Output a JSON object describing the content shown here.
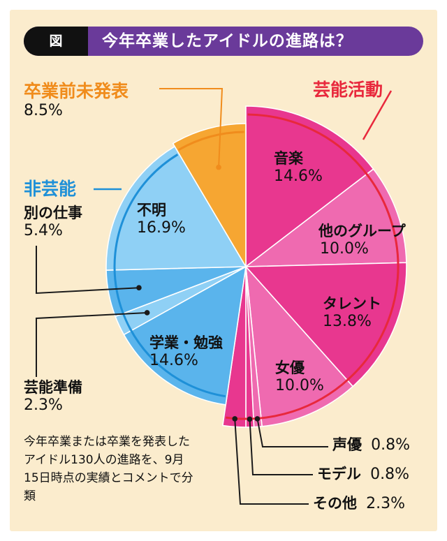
{
  "title": {
    "tag": "図",
    "text": "今年卒業したアイドルの進路は？"
  },
  "groups": [
    {
      "name": "芸能活動",
      "color": "#e8283c"
    },
    {
      "name": "非芸能",
      "color": "#1e90d8"
    },
    {
      "name": "卒業前未発表",
      "color": "#f08c1c"
    }
  ],
  "note": "今年卒業または卒業を発表したアイドル130人の進路を、9月15日時点の実績とコメントで分類",
  "chart_data": {
    "type": "pie",
    "title": "今年卒業したアイドルの進路は？",
    "unit": "%",
    "slices": [
      {
        "label": "音楽",
        "value": 14.6,
        "display": "14.6%",
        "group": "芸能活動",
        "color": "#e8378f"
      },
      {
        "label": "他のグループ",
        "value": 10.0,
        "display": "10.0%",
        "group": "芸能活動",
        "color": "#ef6ab0"
      },
      {
        "label": "タレント",
        "value": 13.8,
        "display": "13.8%",
        "group": "芸能活動",
        "color": "#e8378f"
      },
      {
        "label": "女優",
        "value": 10.0,
        "display": "10.0%",
        "group": "芸能活動",
        "color": "#ef6ab0"
      },
      {
        "label": "声優",
        "value": 0.8,
        "display": "0.8%",
        "group": "芸能活動",
        "color": "#ef6ab0"
      },
      {
        "label": "モデル",
        "value": 0.8,
        "display": "0.8%",
        "group": "芸能活動",
        "color": "#e8378f"
      },
      {
        "label": "その他",
        "value": 2.3,
        "display": "2.3%",
        "group": "芸能活動",
        "color": "#e8378f"
      },
      {
        "label": "学業・勉強",
        "value": 14.6,
        "display": "14.6%",
        "group": "非芸能",
        "color": "#5ab4ec"
      },
      {
        "label": "芸能準備",
        "value": 2.3,
        "display": "2.3%",
        "group": "非芸能",
        "color": "#8fd0f5"
      },
      {
        "label": "別の仕事",
        "value": 5.4,
        "display": "5.4%",
        "group": "非芸能",
        "color": "#5ab4ec"
      },
      {
        "label": "不明",
        "value": 16.9,
        "display": "16.9%",
        "group": "非芸能",
        "color": "#8fd0f5"
      },
      {
        "label": "卒業前未発表",
        "value": 8.5,
        "display": "8.5%",
        "group": "卒業前未発表",
        "color": "#f6a632"
      }
    ]
  }
}
